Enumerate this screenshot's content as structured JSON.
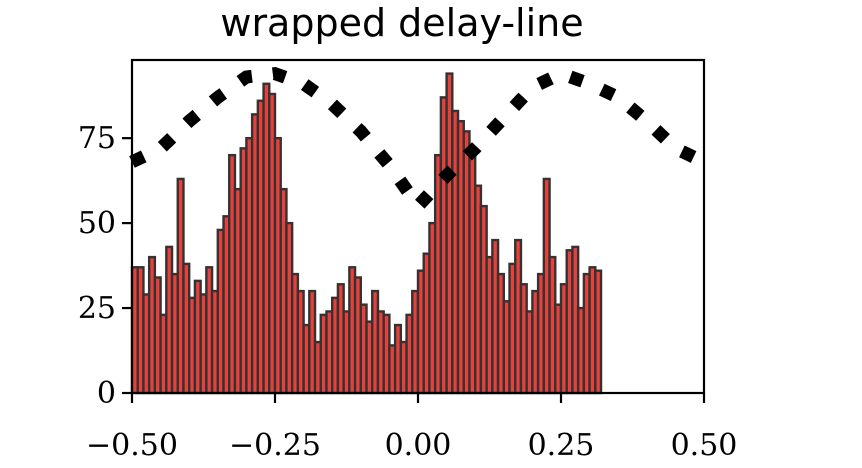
{
  "chart_data": {
    "type": "bar",
    "title": "wrapped delay-line",
    "xlabel": "",
    "ylabel": "",
    "xlim": [
      -0.5,
      0.5
    ],
    "ylim": [
      0,
      98
    ],
    "x_ticks": [
      -0.5,
      -0.25,
      0.0,
      0.25,
      0.5
    ],
    "x_tick_labels": [
      "−0.50",
      "−0.25",
      "0.00",
      "0.25",
      "0.50"
    ],
    "y_ticks": [
      0,
      25,
      50,
      75
    ],
    "y_tick_labels": [
      "0",
      "25",
      "50",
      "75"
    ],
    "grid": false,
    "bin_width": 0.01,
    "bin_start": -0.5,
    "bar_color": "#e8403a",
    "bar_edge_color": "#333333",
    "line_color": "#000000",
    "histogram_values": [
      37,
      37,
      29,
      40,
      34,
      23,
      43,
      35,
      63,
      38,
      28,
      33,
      29,
      37,
      30,
      48,
      52,
      70,
      60,
      72,
      75,
      82,
      86,
      91,
      88,
      75,
      60,
      50,
      35,
      30,
      20,
      30,
      15,
      23,
      24,
      28,
      32,
      24,
      37,
      34,
      26,
      21,
      30,
      24,
      23,
      14,
      20,
      15,
      23,
      30,
      36,
      41,
      50,
      70,
      87,
      94,
      83,
      80,
      77,
      70,
      61,
      55,
      40,
      45,
      35,
      27,
      38,
      45,
      32,
      24,
      30,
      35,
      63,
      40,
      26,
      32,
      42,
      43,
      25,
      35,
      37,
      36
    ],
    "overlay_line": {
      "style": "dotted",
      "x": [
        -0.5,
        -0.45,
        -0.4,
        -0.35,
        -0.3,
        -0.25,
        -0.2,
        -0.15,
        -0.1,
        -0.05,
        0.0,
        0.05,
        0.1,
        0.15,
        0.2,
        0.25,
        0.3,
        0.35,
        0.4,
        0.45,
        0.5
      ],
      "y": [
        68,
        72,
        80,
        87,
        93,
        94,
        91,
        85,
        77,
        67,
        55,
        64,
        72,
        81,
        90,
        94,
        91,
        87,
        80,
        72,
        68
      ]
    }
  }
}
